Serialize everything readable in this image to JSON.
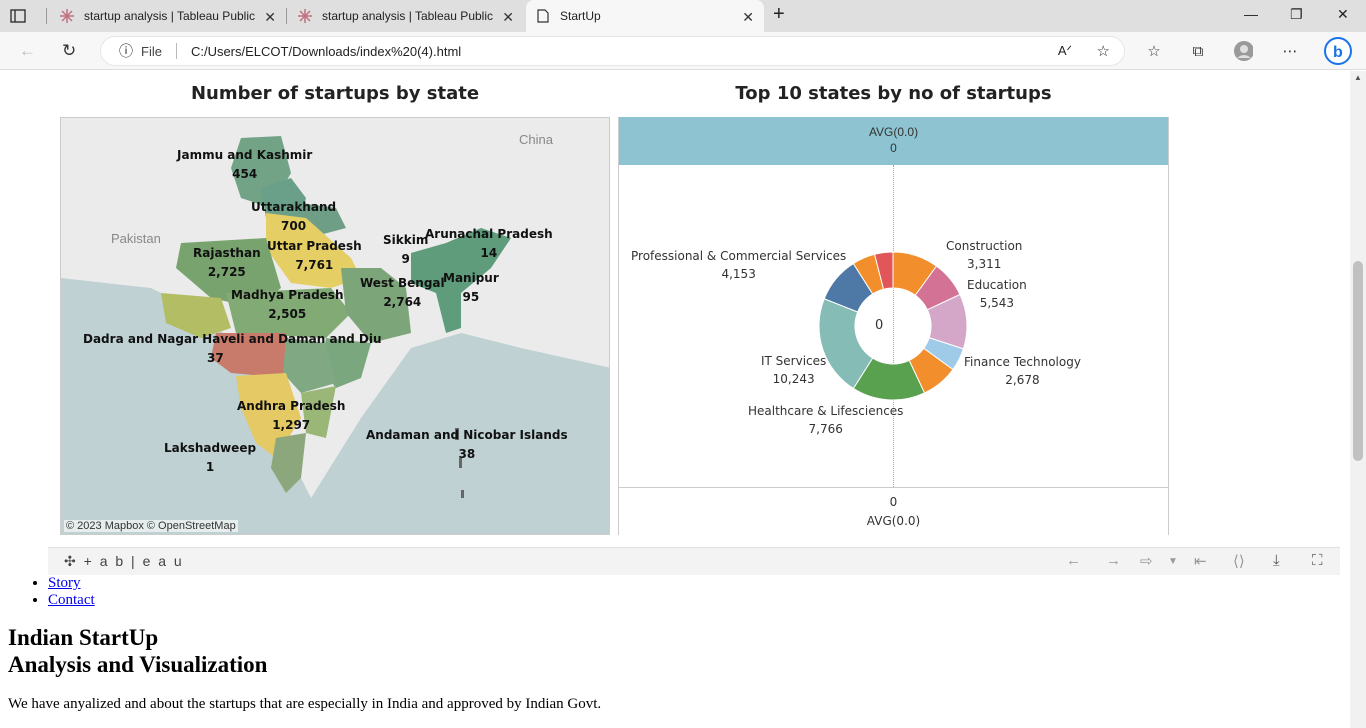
{
  "browser": {
    "tabs": [
      {
        "title": "startup analysis | Tableau Public"
      },
      {
        "title": "startup analysis | Tableau Public"
      },
      {
        "title": "StartUp"
      }
    ],
    "address": {
      "scheme_label": "File",
      "url": "C:/Users/ELCOT/Downloads/index%20(4).html"
    }
  },
  "viz": {
    "map_title": "Number of startups by state",
    "donut_title": "Top 10 states by no of startups",
    "map": {
      "countries": [
        "China",
        "Pakistan"
      ],
      "attribution": "© 2023 Mapbox  © OpenStreetMap",
      "states": [
        {
          "name": "Jammu and Kashmir",
          "value": "454"
        },
        {
          "name": "Uttarakhand",
          "value": "700"
        },
        {
          "name": "Uttar Pradesh",
          "value": "7,761"
        },
        {
          "name": "Rajasthan",
          "value": "2,725"
        },
        {
          "name": "Sikkim",
          "value": "9"
        },
        {
          "name": "Arunachal Pradesh",
          "value": "14"
        },
        {
          "name": "Manipur",
          "value": "95"
        },
        {
          "name": "West Bengal",
          "value": "2,764"
        },
        {
          "name": "Madhya Pradesh",
          "value": "2,505"
        },
        {
          "name": "Dadra and Nagar Haveli and Daman and Diu",
          "value": "37"
        },
        {
          "name": "Andhra Pradesh",
          "value": "1,297"
        },
        {
          "name": "Andaman and Nicobar Islands",
          "value": "38"
        },
        {
          "name": "Lakshadweep",
          "value": "1"
        }
      ]
    },
    "donut": {
      "avg_label": "AVG(0.0)",
      "avg_value": "0",
      "center_value": "0"
    }
  },
  "chart_data": {
    "type": "pie",
    "categories": [
      "Construction",
      "Education",
      "Finance Technology",
      "Healthcare & Lifesciences",
      "IT Services",
      "Professional & Commercial Services"
    ],
    "labels": [
      "3,311",
      "5,543",
      "2,678",
      "7,766",
      "10,243",
      "4,153"
    ],
    "values": [
      3311,
      5543,
      2678,
      7766,
      10243,
      4153
    ],
    "slice_colors": [
      "#f28e2b",
      "#d37295",
      "#d4a6c8",
      "#a0cbe8",
      "#f28e2b",
      "#59a14f",
      "#86bcb6",
      "#4e79a7",
      "#f28e2b",
      "#e15759"
    ],
    "title": "Top 10 states by no of startups"
  },
  "tableau_bar": {
    "logo": "+ a b | e a u"
  },
  "page": {
    "links": [
      "Story",
      "Contact"
    ],
    "heading_line1": "Indian StartUp",
    "heading_line2": "Analysis and Visualization",
    "paragraph": "We have anyalized and about the startups that are especially in India and approved by Indian Govt."
  }
}
